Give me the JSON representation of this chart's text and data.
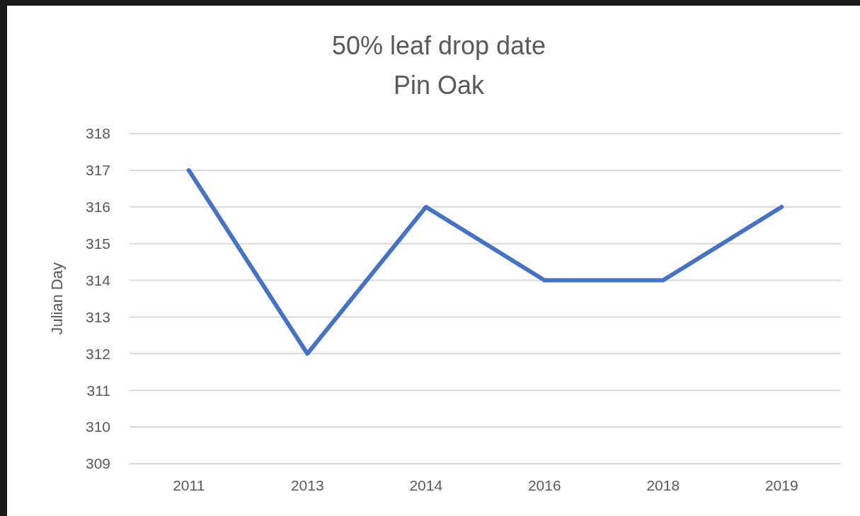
{
  "chart_data": {
    "type": "line",
    "title": "50% leaf drop date\nPin Oak",
    "ylabel": "Julian Day",
    "categories": [
      "2011",
      "2013",
      "2014",
      "2016",
      "2018",
      "2019"
    ],
    "series": [
      {
        "color": "#4472c4",
        "values": [
          317,
          312,
          316,
          314,
          314,
          316
        ]
      }
    ],
    "ylim": [
      309,
      318
    ],
    "yticks": [
      309,
      310,
      311,
      312,
      313,
      314,
      315,
      316,
      317,
      318
    ],
    "grid": "y",
    "marker": "none",
    "line_style": "solid"
  }
}
